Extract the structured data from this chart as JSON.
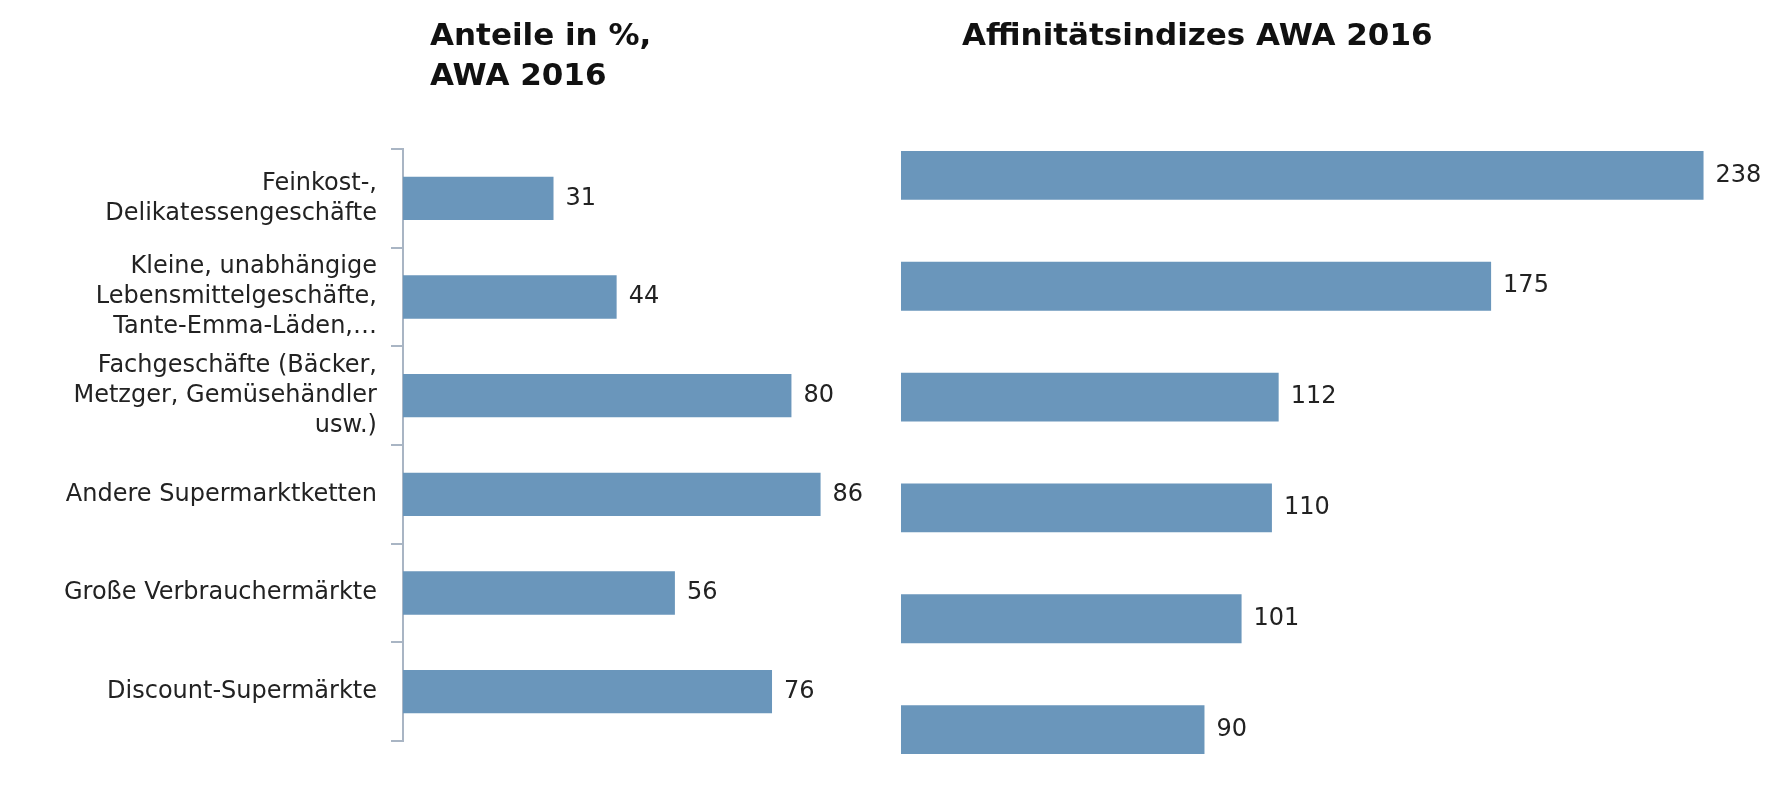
{
  "chart_data": [
    {
      "type": "bar",
      "title": "Anteile in %, AWA 2016",
      "orientation": "horizontal",
      "categories": [
        "Feinkost-, Delikatessengeschäfte",
        "Kleine, unabhängige Lebensmittelgeschäfte, Tante-Emma-Läden,…",
        "Fachgeschäfte (Bäcker, Metzger, Gemüsehändler usw.)",
        "Andere Supermarktketten",
        "Große Verbrauchermärkte",
        "Discount-Supermärkte"
      ],
      "values": [
        31,
        44,
        80,
        86,
        56,
        76
      ],
      "color": "#6a96bb",
      "data_labels": true,
      "grid": false,
      "legend": false,
      "tick_labels": "y"
    },
    {
      "type": "bar",
      "title": "Affinitätsindizes AWA 2016",
      "orientation": "horizontal",
      "categories": [
        null,
        null,
        null,
        null,
        null,
        null
      ],
      "values": [
        238,
        175,
        112,
        110,
        101,
        90
      ],
      "color": "#6a96bb",
      "data_labels": true,
      "grid": false,
      "legend": false,
      "tick_labels": false
    }
  ]
}
